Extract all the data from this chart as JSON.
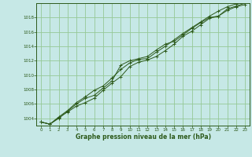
{
  "background_color": "#c6e8e6",
  "grid_color": "#96c896",
  "line_color": "#2d5a1b",
  "marker_color": "#2d5a1b",
  "xlabel": "Graphe pression niveau de la mer (hPa)",
  "xlabel_color": "#2d5a1b",
  "ylabel_color": "#2d5a1b",
  "xlim": [
    -0.5,
    23.5
  ],
  "ylim": [
    1003.0,
    1020.0
  ],
  "yticks": [
    1004,
    1006,
    1008,
    1010,
    1012,
    1014,
    1016,
    1018
  ],
  "xticks": [
    0,
    1,
    2,
    3,
    4,
    5,
    6,
    7,
    8,
    9,
    10,
    11,
    12,
    13,
    14,
    15,
    16,
    17,
    18,
    19,
    20,
    21,
    22,
    23
  ],
  "series1_x": [
    0,
    1,
    2,
    3,
    4,
    5,
    6,
    7,
    8,
    9,
    10,
    11,
    12,
    13,
    14,
    15,
    16,
    17,
    18,
    19,
    20,
    21,
    22,
    23
  ],
  "series1_y": [
    1003.5,
    1003.2,
    1004.1,
    1004.9,
    1005.7,
    1006.2,
    1006.8,
    1007.9,
    1008.9,
    1009.8,
    1011.2,
    1011.8,
    1012.1,
    1012.6,
    1013.4,
    1014.3,
    1015.4,
    1016.1,
    1017.0,
    1017.9,
    1018.2,
    1019.0,
    1019.5,
    1019.8
  ],
  "series2_x": [
    0,
    1,
    2,
    3,
    4,
    5,
    6,
    7,
    8,
    9,
    10,
    11,
    12,
    13,
    14,
    15,
    16,
    17,
    18,
    19,
    20,
    21,
    22,
    23
  ],
  "series2_y": [
    1003.5,
    1003.2,
    1004.2,
    1005.1,
    1006.2,
    1007.0,
    1007.9,
    1008.5,
    1009.6,
    1010.8,
    1011.7,
    1012.2,
    1012.3,
    1013.2,
    1014.0,
    1014.9,
    1015.8,
    1016.6,
    1017.4,
    1018.2,
    1018.9,
    1019.5,
    1019.9,
    1020.1
  ],
  "series3_x": [
    0,
    1,
    2,
    3,
    4,
    5,
    6,
    7,
    8,
    9,
    10,
    11,
    12,
    13,
    14,
    15,
    16,
    17,
    18,
    19,
    20,
    21,
    22,
    23
  ],
  "series3_y": [
    1003.5,
    1003.2,
    1004.0,
    1005.0,
    1006.0,
    1006.8,
    1007.2,
    1008.2,
    1009.2,
    1011.4,
    1012.0,
    1012.3,
    1012.6,
    1013.5,
    1014.3,
    1014.7,
    1015.6,
    1016.5,
    1017.3,
    1018.0,
    1018.2,
    1019.2,
    1019.6,
    1020.0
  ]
}
